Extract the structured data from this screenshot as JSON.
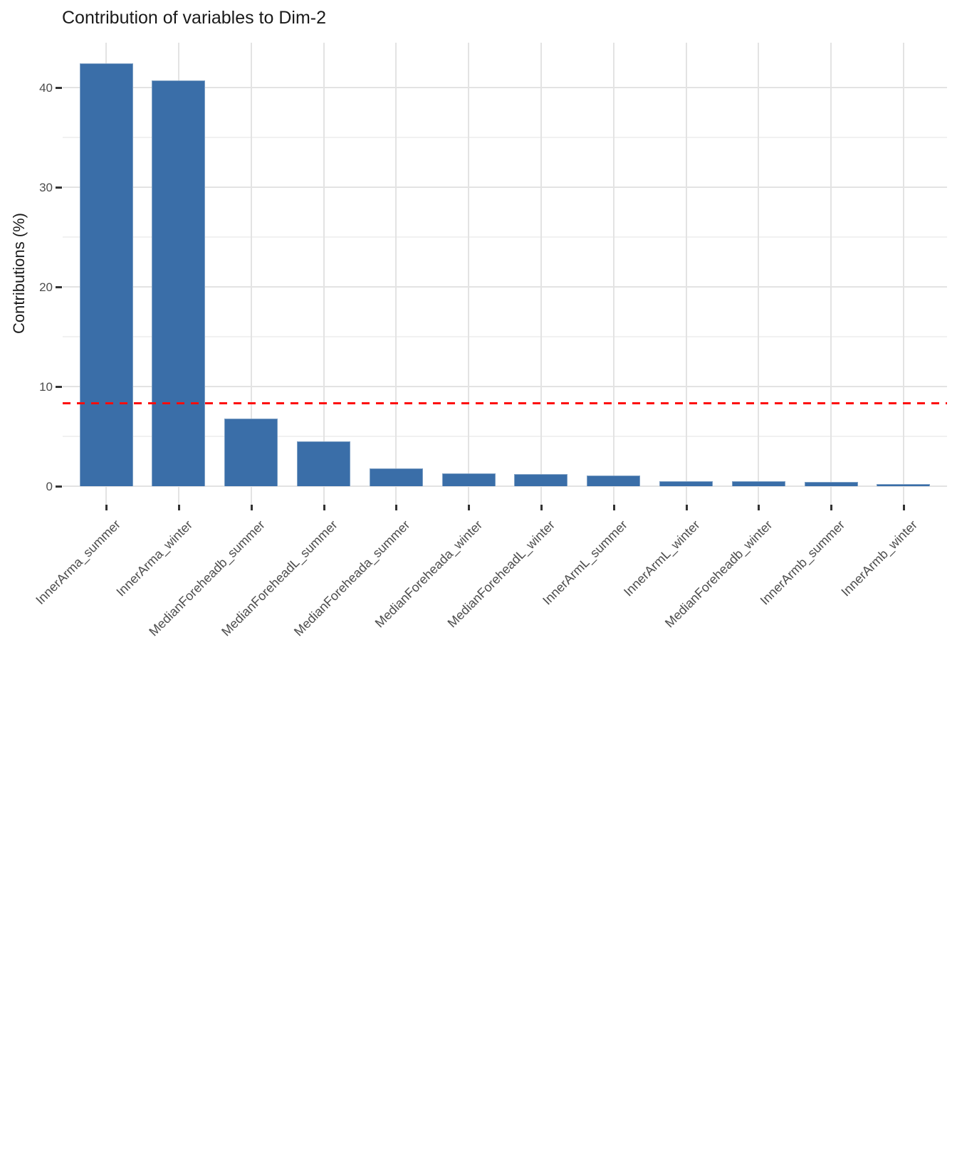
{
  "title": "Contribution of variables to Dim-2",
  "chart_data": {
    "type": "bar",
    "title": "Contribution of variables to Dim-2",
    "xlabel": "",
    "ylabel": "Contributions (%)",
    "categories": [
      "InnerArma_summer",
      "InnerArma_winter",
      "MedianForeheadb_summer",
      "MedianForeheadL_summer",
      "MedianForeheada_summer",
      "MedianForeheada_winter",
      "MedianForeheadL_winter",
      "InnerArmL_summer",
      "InnerArmL_winter",
      "MedianForeheadb_winter",
      "InnerArmb_summer",
      "InnerArmb_winter"
    ],
    "values": [
      42.4,
      40.7,
      6.8,
      4.5,
      1.8,
      1.3,
      1.2,
      1.1,
      0.52,
      0.48,
      0.41,
      0.2
    ],
    "ylim": [
      0,
      44.5
    ],
    "yticks": [
      0,
      10,
      20,
      30,
      40
    ],
    "minor_ticks": [
      5,
      15,
      25,
      35
    ],
    "grid": true,
    "legend": "none",
    "x_label_angle": 45,
    "bar_color": "#3A6EA8",
    "bar_border_color": "#7D9FC4",
    "reference_line": {
      "value": 8.33,
      "color": "#FF0000",
      "style": "dashed"
    }
  },
  "colors": {
    "background": "#FFFFFF",
    "grid_major": "#E3E3E3",
    "grid_minor": "#F1F1F1",
    "axis_text": "#4D4D4D",
    "title_text": "#1A1A1A",
    "tick_mark": "#333333"
  }
}
